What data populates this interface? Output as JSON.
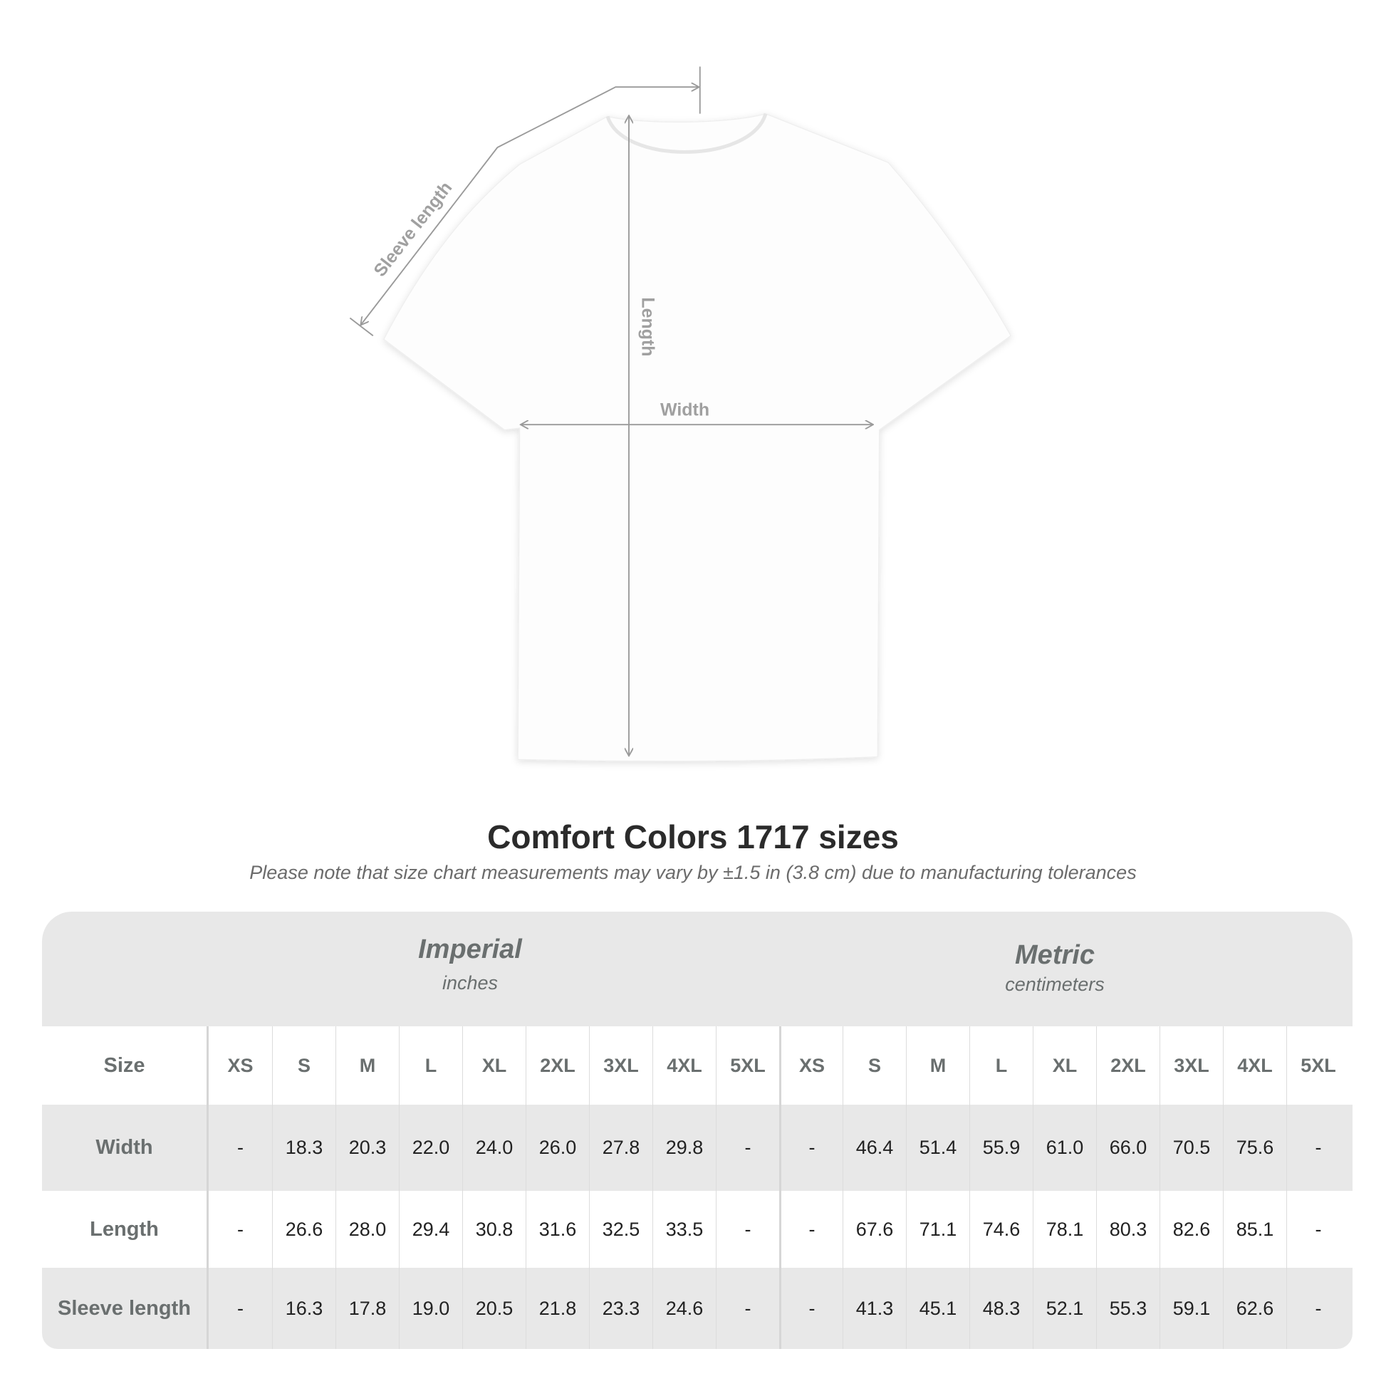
{
  "diagram": {
    "labels": {
      "sleeve": "Sleeve length",
      "length": "Length",
      "width": "Width"
    },
    "shirt_color": "#ffffff",
    "arrow_color": "#9a9a9a"
  },
  "title": "Comfort Colors 1717 sizes",
  "note": "Please note that size chart measurements may vary by ±1.5 in (3.8 cm) due to manufacturing tolerances",
  "table": {
    "imperial": {
      "name": "Imperial",
      "unit": "inches"
    },
    "metric": {
      "name": "Metric",
      "unit": "centimeters"
    },
    "size_label": "Size",
    "sizes": [
      "XS",
      "S",
      "M",
      "L",
      "XL",
      "2XL",
      "3XL",
      "4XL",
      "5XL"
    ],
    "rows": [
      {
        "label": "Width",
        "imperial": [
          "-",
          "18.3",
          "20.3",
          "22.0",
          "24.0",
          "26.0",
          "27.8",
          "29.8",
          "-"
        ],
        "metric": [
          "-",
          "46.4",
          "51.4",
          "55.9",
          "61.0",
          "66.0",
          "70.5",
          "75.6",
          "-"
        ]
      },
      {
        "label": "Length",
        "imperial": [
          "-",
          "26.6",
          "28.0",
          "29.4",
          "30.8",
          "31.6",
          "32.5",
          "33.5",
          "-"
        ],
        "metric": [
          "-",
          "67.6",
          "71.1",
          "74.6",
          "78.1",
          "80.3",
          "82.6",
          "85.1",
          "-"
        ]
      },
      {
        "label": "Sleeve length",
        "imperial": [
          "-",
          "16.3",
          "17.8",
          "19.0",
          "20.5",
          "21.8",
          "23.3",
          "24.6",
          "-"
        ],
        "metric": [
          "-",
          "41.3",
          "45.1",
          "48.3",
          "52.1",
          "55.3",
          "59.1",
          "62.6",
          "-"
        ]
      }
    ]
  }
}
